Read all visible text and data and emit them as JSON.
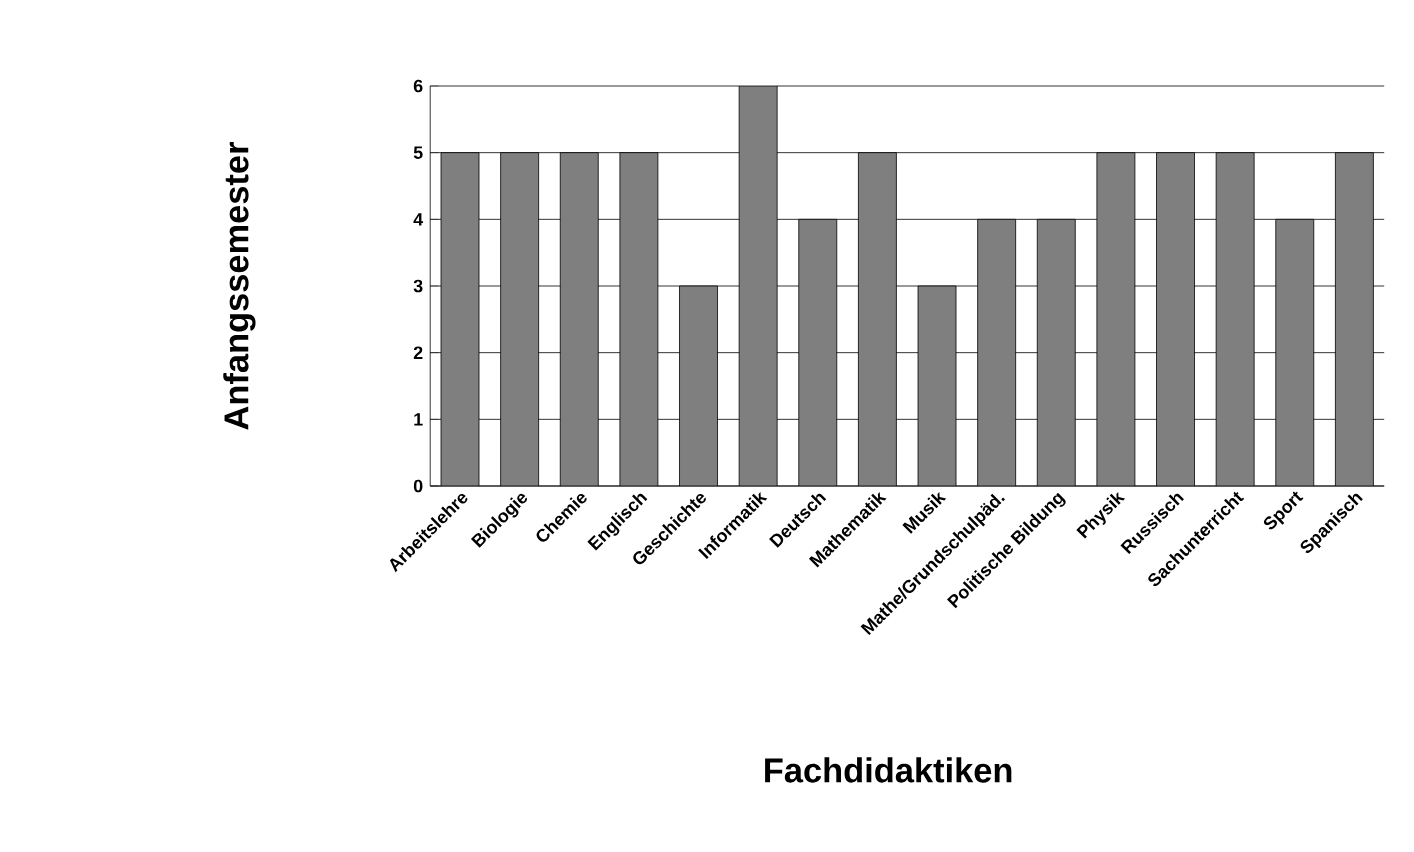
{
  "chart_data": {
    "type": "bar",
    "xlabel": "Fachdidaktiken",
    "ylabel": "Anfangssemester",
    "categories": [
      "Arbeitslehre",
      "Biologie",
      "Chemie",
      "Englisch",
      "Geschichte",
      "Informatik",
      "Deutsch",
      "Mathematik",
      "Musik",
      "Mathe/Grundschulpäd.",
      "Politische Bildung",
      "Physik",
      "Russisch",
      "Sachunterricht",
      "Sport",
      "Spanisch"
    ],
    "values": [
      5,
      5,
      5,
      5,
      3,
      6,
      4,
      5,
      3,
      4,
      4,
      5,
      5,
      5,
      4,
      5
    ],
    "color": "#7f7f7f",
    "ylim": [
      0,
      6
    ],
    "yticks": [
      0,
      1,
      2,
      3,
      4,
      5,
      6
    ],
    "grid": "y"
  }
}
